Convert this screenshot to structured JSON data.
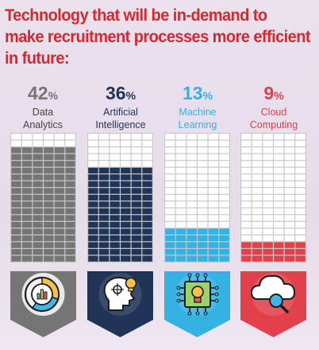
{
  "title_lines": [
    "Technology that will be in-demand to",
    "make recruitment processes more efficient",
    "in future:"
  ],
  "colors": {
    "title": "#d6282e",
    "empty_cell": "#ffffff",
    "grid_gap": "#c9c9c9"
  },
  "chart_data": {
    "type": "bar",
    "title": "Technology that will be in-demand to make recruitment processes more efficient in future:",
    "categories": [
      "Data Analytics",
      "Artificial Intelligence",
      "Machine Learning",
      "Cloud Computing"
    ],
    "values": [
      42,
      36,
      13,
      9
    ],
    "unit": "%",
    "colors": [
      "#757575",
      "#1f3457",
      "#34b2e4",
      "#e2404a"
    ],
    "label_lines": [
      [
        "Data",
        "Analytics"
      ],
      [
        "Artificial",
        "Intelligence"
      ],
      [
        "Machine",
        "Learning"
      ],
      [
        "Cloud",
        "Computing"
      ]
    ],
    "percent_text": [
      "42",
      "36",
      "13",
      "9"
    ],
    "percent_symbol": "%",
    "icons": [
      "donut-chart-icon",
      "ai-head-icon",
      "circuit-bulb-icon",
      "cloud-search-icon"
    ],
    "grid": {
      "rows": 19,
      "cols": 6,
      "fill_rows": [
        17,
        14,
        5,
        3
      ]
    }
  }
}
